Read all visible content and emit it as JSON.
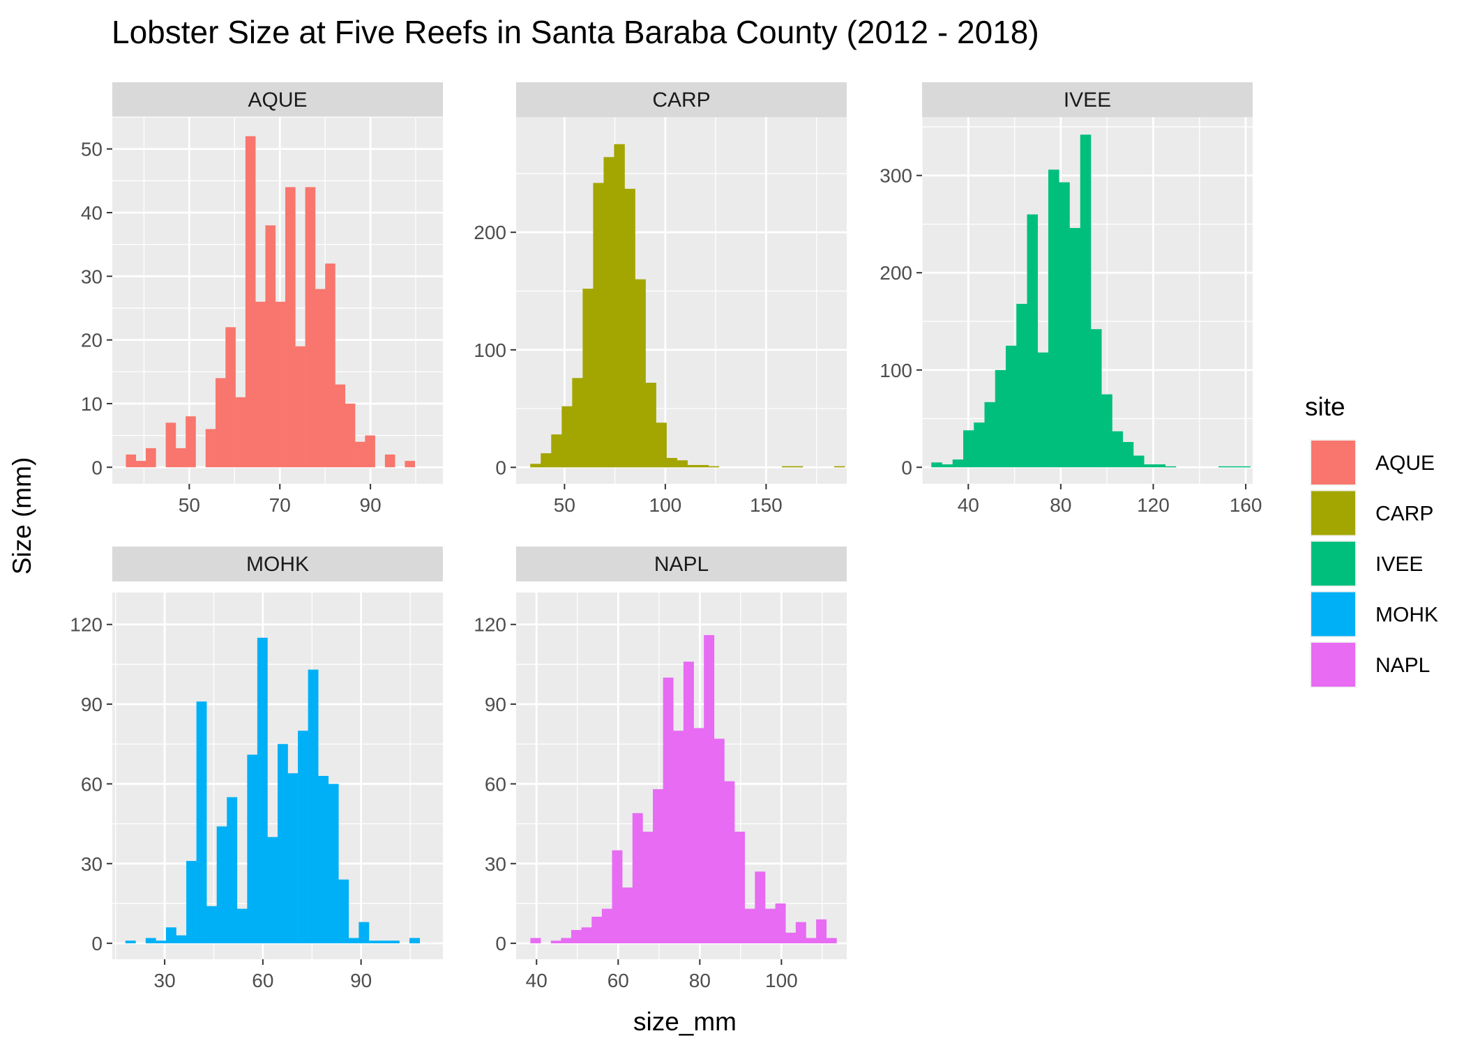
{
  "chart_data": {
    "type": "bar",
    "title": "Lobster Size at Five Reefs in Santa Baraba County (2012 - 2018)",
    "xlabel": "size_mm",
    "ylabel": "Size (mm)",
    "grid": true,
    "legend": {
      "title": "site",
      "placement": "right",
      "entries": [
        {
          "label": "AQUE",
          "color": "#F8766D"
        },
        {
          "label": "CARP",
          "color": "#A3A500"
        },
        {
          "label": "IVEE",
          "color": "#00BF7D"
        },
        {
          "label": "MOHK",
          "color": "#00B0F6"
        },
        {
          "label": "NAPL",
          "color": "#E76BF3"
        }
      ]
    },
    "panels": [
      {
        "name": "AQUE",
        "color": "#F8766D",
        "xlim": [
          33,
          106
        ],
        "ylim": [
          -2.6,
          55
        ],
        "xticks": [
          50,
          70,
          90
        ],
        "yticks": [
          0,
          10,
          20,
          30,
          40,
          50
        ],
        "bin_start": 36,
        "bin_width": 2.2,
        "counts": [
          2,
          1,
          3,
          0,
          7,
          3,
          8,
          0,
          6,
          14,
          22,
          11,
          52,
          26,
          38,
          26,
          44,
          19,
          44,
          28,
          32,
          13,
          10,
          4,
          5,
          0,
          2,
          0,
          1
        ]
      },
      {
        "name": "CARP",
        "color": "#A3A500",
        "xlim": [
          26,
          190
        ],
        "ylim": [
          -14,
          298
        ],
        "xticks": [
          50,
          100,
          150
        ],
        "yticks": [
          0,
          100,
          200
        ],
        "bin_start": 33,
        "bin_width": 5.2,
        "counts": [
          3,
          12,
          28,
          52,
          76,
          152,
          242,
          264,
          275,
          237,
          160,
          72,
          38,
          8,
          6,
          2,
          2,
          1,
          0,
          0,
          0,
          0,
          0,
          0,
          1,
          1,
          0,
          0,
          0,
          1
        ]
      },
      {
        "name": "IVEE",
        "color": "#00BF7D",
        "xlim": [
          20,
          163
        ],
        "ylim": [
          -17,
          360
        ],
        "xticks": [
          40,
          80,
          120,
          160
        ],
        "yticks": [
          0,
          100,
          200,
          300
        ],
        "bin_start": 24,
        "bin_width": 4.6,
        "counts": [
          5,
          3,
          8,
          38,
          46,
          67,
          100,
          125,
          168,
          260,
          118,
          306,
          293,
          246,
          342,
          142,
          75,
          37,
          26,
          12,
          3,
          3,
          1,
          0,
          0,
          0,
          0,
          1,
          1,
          1
        ]
      },
      {
        "name": "MOHK",
        "color": "#00B0F6",
        "xlim": [
          14,
          115
        ],
        "ylim": [
          -6,
          132
        ],
        "xticks": [
          30,
          60,
          90
        ],
        "yticks": [
          0,
          30,
          60,
          90,
          120
        ],
        "bin_start": 18,
        "bin_width": 3.1,
        "counts": [
          1,
          0,
          2,
          1,
          6,
          3,
          31,
          91,
          14,
          44,
          55,
          13,
          71,
          115,
          40,
          75,
          64,
          80,
          103,
          63,
          60,
          24,
          2,
          8,
          1,
          1,
          1,
          0,
          2
        ]
      },
      {
        "name": "NAPL",
        "color": "#E76BF3",
        "xlim": [
          35,
          116
        ],
        "ylim": [
          -6,
          132
        ],
        "xticks": [
          40,
          60,
          80,
          100
        ],
        "yticks": [
          0,
          30,
          60,
          90,
          120
        ],
        "bin_start": 38.5,
        "bin_width": 2.5,
        "counts": [
          2,
          0,
          1,
          2,
          5,
          6,
          10,
          13,
          35,
          21,
          49,
          42,
          58,
          100,
          80,
          106,
          81,
          116,
          77,
          61,
          42,
          13,
          27,
          13,
          15,
          4,
          8,
          2,
          9,
          2
        ]
      }
    ]
  }
}
